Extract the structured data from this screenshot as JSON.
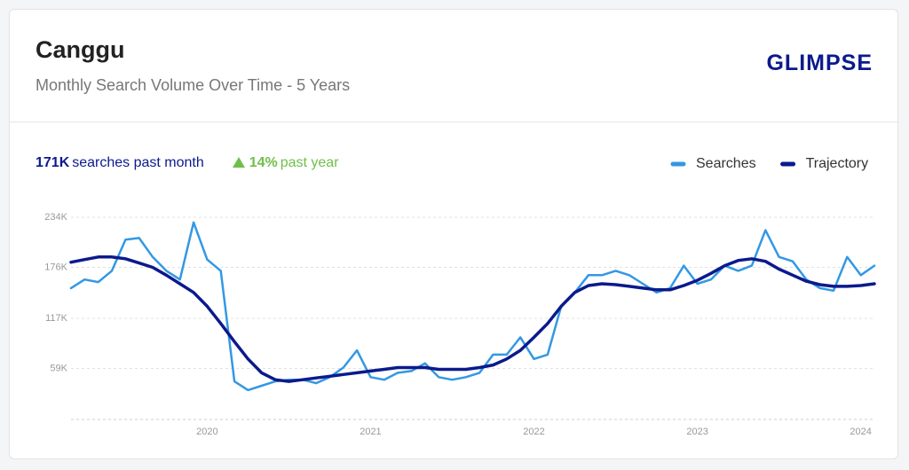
{
  "header": {
    "title": "Canggu",
    "subtitle": "Monthly Search Volume Over Time - 5 Years",
    "logo": "GLIMPSE"
  },
  "stats": {
    "month_value": "171K",
    "month_label": "searches past month",
    "year_value": "14%",
    "year_label": "past year"
  },
  "chart_data": {
    "type": "line",
    "categories": [
      null,
      null,
      null,
      null,
      null,
      null,
      null,
      null,
      null,
      null,
      "2020",
      null,
      null,
      null,
      null,
      null,
      null,
      null,
      null,
      null,
      null,
      null,
      "2021",
      null,
      null,
      null,
      null,
      null,
      null,
      null,
      null,
      null,
      null,
      null,
      "2022",
      null,
      null,
      null,
      null,
      null,
      null,
      null,
      null,
      null,
      null,
      null,
      "2023",
      null,
      null,
      null,
      null,
      null,
      null,
      null,
      null,
      null,
      null,
      null,
      "2024",
      null
    ],
    "series": [
      {
        "name": "Searches",
        "color": "#3398e4",
        "values": [
          152000,
          162000,
          159000,
          172000,
          208000,
          210000,
          188000,
          172000,
          162000,
          228000,
          185000,
          172000,
          44000,
          34000,
          39000,
          44000,
          46000,
          46000,
          42000,
          49000,
          60000,
          80000,
          49000,
          46000,
          54000,
          56000,
          65000,
          49000,
          46000,
          49000,
          54000,
          75000,
          75000,
          95000,
          70000,
          75000,
          131000,
          147000,
          167000,
          167000,
          172000,
          167000,
          157000,
          147000,
          152000,
          178000,
          157000,
          162000,
          178000,
          172000,
          178000,
          219000,
          188000,
          183000,
          162000,
          152000,
          149000,
          188000,
          167000,
          178000
        ]
      },
      {
        "name": "Trajectory",
        "color": "#0b1a8c",
        "values": [
          182000,
          185000,
          188000,
          188000,
          186000,
          181000,
          176000,
          167000,
          157000,
          147000,
          131000,
          111000,
          90000,
          70000,
          54000,
          46000,
          44000,
          46000,
          48000,
          50000,
          52000,
          54000,
          56000,
          58000,
          60000,
          60000,
          60000,
          58000,
          58000,
          58000,
          60000,
          63000,
          70000,
          80000,
          95000,
          111000,
          131000,
          147000,
          155000,
          157000,
          156000,
          154000,
          152000,
          150000,
          150000,
          155000,
          161000,
          169000,
          178000,
          184000,
          186000,
          183000,
          174000,
          167000,
          160000,
          156000,
          154000,
          154000,
          155000,
          157000
        ]
      }
    ],
    "ylim": [
      0,
      234000
    ],
    "yticks": [
      {
        "value": 59000,
        "label": "59K"
      },
      {
        "value": 117000,
        "label": "117K"
      },
      {
        "value": 176000,
        "label": "176K"
      },
      {
        "value": 234000,
        "label": "234K"
      }
    ],
    "grid": true,
    "legend": "top-right"
  }
}
